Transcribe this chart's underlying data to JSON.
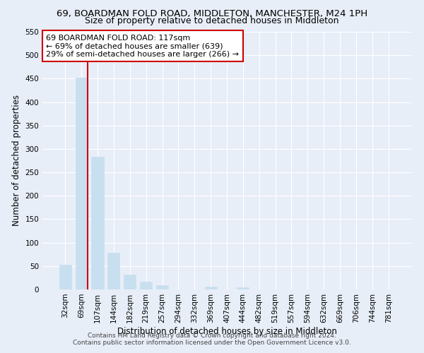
{
  "title": "69, BOARDMAN FOLD ROAD, MIDDLETON, MANCHESTER, M24 1PH",
  "subtitle": "Size of property relative to detached houses in Middleton",
  "xlabel": "Distribution of detached houses by size in Middleton",
  "ylabel": "Number of detached properties",
  "bar_labels": [
    "32sqm",
    "69sqm",
    "107sqm",
    "144sqm",
    "182sqm",
    "219sqm",
    "257sqm",
    "294sqm",
    "332sqm",
    "369sqm",
    "407sqm",
    "444sqm",
    "482sqm",
    "519sqm",
    "557sqm",
    "594sqm",
    "632sqm",
    "669sqm",
    "706sqm",
    "744sqm",
    "781sqm"
  ],
  "bar_values": [
    53,
    452,
    283,
    78,
    31,
    16,
    9,
    0,
    0,
    6,
    0,
    4,
    0,
    0,
    0,
    0,
    0,
    0,
    0,
    0,
    0
  ],
  "bar_color": "#c8dff0",
  "bar_edge_color": "#c8dff0",
  "highlight_bar_index": 1,
  "highlight_line_color": "#cc0000",
  "annotation_line1": "69 BOARDMAN FOLD ROAD: 117sqm",
  "annotation_line2": "← 69% of detached houses are smaller (639)",
  "annotation_line3": "29% of semi-detached houses are larger (266) →",
  "annotation_box_color": "#ffffff",
  "annotation_box_edge": "#cc0000",
  "ylim": [
    0,
    550
  ],
  "yticks": [
    0,
    50,
    100,
    150,
    200,
    250,
    300,
    350,
    400,
    450,
    500,
    550
  ],
  "footnote1": "Contains HM Land Registry data © Crown copyright and database right 2024.",
  "footnote2": "Contains public sector information licensed under the Open Government Licence v3.0.",
  "background_color": "#e8eef8",
  "plot_bg_color": "#e8eef8",
  "title_fontsize": 9.5,
  "subtitle_fontsize": 9,
  "axis_label_fontsize": 8.5,
  "tick_fontsize": 7.5
}
